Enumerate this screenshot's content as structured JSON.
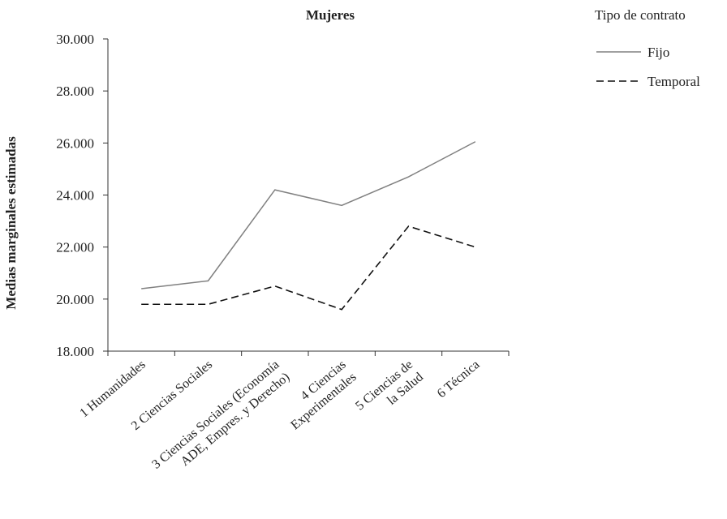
{
  "chart_data": {
    "type": "line",
    "title": "Mujeres",
    "xlabel": "",
    "ylabel": "Medias marginales estimadas",
    "ylim": [
      18000,
      30000
    ],
    "yticks": [
      18000,
      20000,
      22000,
      24000,
      26000,
      28000,
      30000
    ],
    "ytick_labels": [
      "18.000",
      "20.000",
      "22.000",
      "24.000",
      "26.000",
      "28.000",
      "30.000"
    ],
    "grid": false,
    "categories": [
      [
        "1 Humanidades"
      ],
      [
        "2 Ciencias Sociales"
      ],
      [
        "3 Ciencias Sociales (Economía",
        "ADE, Empres. y Derecho)"
      ],
      [
        "4 Ciencias",
        "Experimentales"
      ],
      [
        "5 Ciencias de",
        "la Salud"
      ],
      [
        "6 Técnica"
      ]
    ],
    "legend": {
      "title": "Tipo de contrato",
      "placement": "top-right"
    },
    "series": [
      {
        "name": "Fijo",
        "style": "solid",
        "color": "#808080",
        "values": [
          20400,
          20700,
          24200,
          23600,
          24700,
          26050
        ]
      },
      {
        "name": "Temporal",
        "style": "dashed",
        "color": "#111111",
        "values": [
          19800,
          19800,
          20500,
          19600,
          22800,
          22000
        ]
      }
    ]
  }
}
